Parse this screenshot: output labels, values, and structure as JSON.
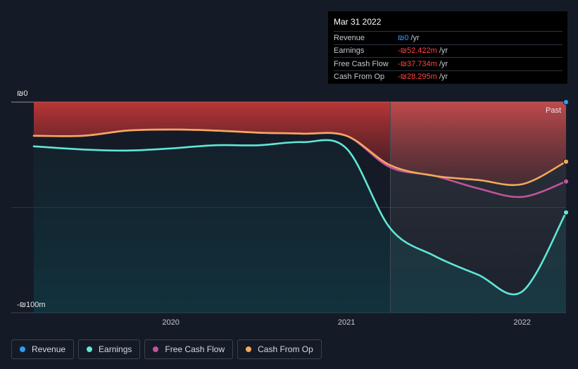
{
  "colors": {
    "revenue": "#2a9df4",
    "earnings": "#5ee8d8",
    "free_cash_flow": "#c3539a",
    "cash_from_op": "#f3a85c"
  },
  "tooltip": {
    "date": "Mar 31 2022",
    "rows": [
      {
        "label": "Revenue",
        "value": "₪0",
        "unit": "/yr"
      },
      {
        "label": "Earnings",
        "value": "-₪52.422m",
        "unit": "/yr"
      },
      {
        "label": "Free Cash Flow",
        "value": "-₪37.734m",
        "unit": "/yr"
      },
      {
        "label": "Cash From Op",
        "value": "-₪28.295m",
        "unit": "/yr"
      }
    ]
  },
  "legend": [
    {
      "label": "Revenue",
      "color": "#2a9df4"
    },
    {
      "label": "Earnings",
      "color": "#5ee8d8"
    },
    {
      "label": "Free Cash Flow",
      "color": "#c3539a"
    },
    {
      "label": "Cash From Op",
      "color": "#f3a85c"
    }
  ],
  "chart_data": {
    "type": "line",
    "y_unit": "₪m",
    "ylim": [
      -100,
      0
    ],
    "y_tick_labels": [
      {
        "value": 0,
        "label": "₪0"
      },
      {
        "value": -100,
        "label": "-₪100m"
      }
    ],
    "xlim": [
      2019.22,
      2022.25
    ],
    "x_ticks": [
      {
        "value": 2020,
        "label": "2020"
      },
      {
        "value": 2021,
        "label": "2021"
      },
      {
        "value": 2022,
        "label": "2022"
      }
    ],
    "past_label": "Past",
    "past_start": 2021.25,
    "series": [
      {
        "name": "Revenue",
        "key": "revenue",
        "x": [
          2019.22,
          2022.25
        ],
        "y": [
          0,
          0
        ]
      },
      {
        "name": "Earnings",
        "key": "earnings",
        "x": [
          2019.22,
          2019.5,
          2019.75,
          2020.0,
          2020.25,
          2020.5,
          2020.75,
          2021.0,
          2021.25,
          2021.5,
          2021.75,
          2022.0,
          2022.25
        ],
        "y": [
          -21,
          -22.5,
          -23,
          -22,
          -20.5,
          -20.5,
          -19,
          -22,
          -60,
          -73,
          -82,
          -90,
          -52.4
        ]
      },
      {
        "name": "Free Cash Flow",
        "key": "free_cash_flow",
        "x": [
          2019.22,
          2019.5,
          2019.75,
          2020.0,
          2020.25,
          2020.5,
          2020.75,
          2021.0,
          2021.25,
          2021.5,
          2021.75,
          2022.0,
          2022.25
        ],
        "y": [
          -16,
          -16,
          -13.5,
          -13,
          -13.5,
          -14.5,
          -15,
          -16,
          -31,
          -35,
          -41,
          -45,
          -37.7
        ]
      },
      {
        "name": "Cash From Op",
        "key": "cash_from_op",
        "x": [
          2019.22,
          2019.5,
          2019.75,
          2020.0,
          2020.25,
          2020.5,
          2020.75,
          2021.0,
          2021.25,
          2021.5,
          2021.75,
          2022.0,
          2022.25
        ],
        "y": [
          -16,
          -16,
          -13.5,
          -13,
          -13.5,
          -14.5,
          -15,
          -16,
          -30,
          -35,
          -37,
          -39,
          -28.3
        ]
      }
    ]
  }
}
